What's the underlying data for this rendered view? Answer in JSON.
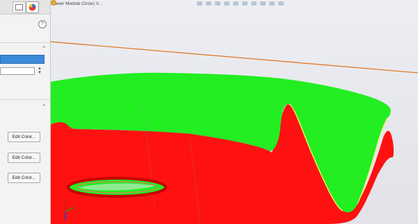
{
  "document": {
    "title": "Tower Module Circle) V..."
  },
  "panel": {
    "help_glyph": "?",
    "spinner_up": "▲",
    "spinner_down": "▼",
    "numeric_input_value": "",
    "edit_buttons": [
      "Edit Color...",
      "Edit Color...",
      "Edit Color..."
    ],
    "chevrons": [
      "^",
      "^"
    ]
  },
  "colors": {
    "selection_blue": "#3b8bd8",
    "surface_green": "#22ee22",
    "surface_red": "#ff1111",
    "sketch_orange": "#e07a23"
  },
  "icons": {
    "analysis_tab": "color-analysis-icon",
    "model_icon": "part-icon"
  }
}
